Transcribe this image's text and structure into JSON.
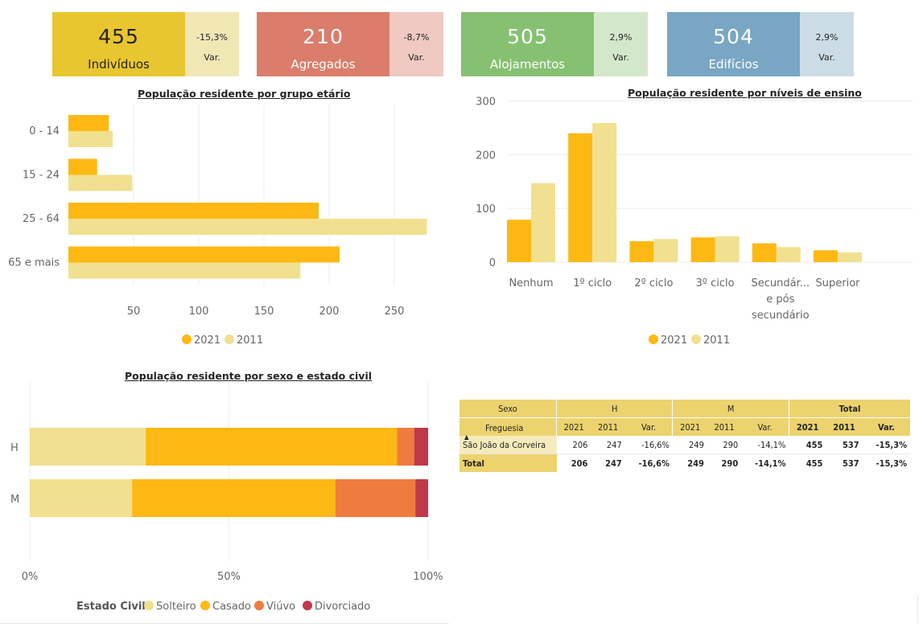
{
  "kpis": [
    {
      "value": "455",
      "label": "Indivíduos",
      "var": "-15,3%",
      "var_label": "Var.",
      "color": "#e8c62f",
      "side_color": "#f1e7b5",
      "text_color": "#252423"
    },
    {
      "value": "210",
      "label": "Agregados",
      "var": "-8,7%",
      "var_label": "Var.",
      "color": "#db7d6b",
      "side_color": "#efc9c2",
      "text_color": "#ffffff"
    },
    {
      "value": "505",
      "label": "Alojamentos",
      "var": "2,9%",
      "var_label": "Var.",
      "color": "#86c172",
      "side_color": "#d3e8cb",
      "text_color": "#ffffff"
    },
    {
      "value": "504",
      "label": "Edifícios",
      "var": "2,9%",
      "var_label": "Var.",
      "color": "#79a6c3",
      "side_color": "#ccdce6",
      "text_color": "#ffffff"
    }
  ],
  "colors": {
    "y2021": "#fdb813",
    "y2011": "#f1e08f",
    "solteiro": "#f1e08f",
    "casado": "#fdb813",
    "viuvo": "#f07b3f",
    "divorciado": "#c0394a"
  },
  "chart_data": [
    {
      "type": "bar",
      "orientation": "horizontal",
      "title": "População residente por grupo etário",
      "categories": [
        "0 - 14",
        "15 - 24",
        "25 - 64",
        "65 e mais"
      ],
      "series": [
        {
          "name": "2021",
          "values": [
            31,
            22,
            192,
            208
          ]
        },
        {
          "name": "2011",
          "values": [
            34,
            49,
            275,
            178
          ]
        }
      ],
      "x_ticks": [
        "50",
        "100",
        "150",
        "200",
        "250"
      ],
      "xlim": [
        0,
        280
      ],
      "legend": "bottom"
    },
    {
      "type": "bar",
      "title": "População residente por níveis de ensino",
      "categories": [
        "Nenhum",
        "1º ciclo",
        "2º ciclo",
        "3º ciclo",
        "Secundár... e pós secundário",
        "Superior"
      ],
      "category_label_lines": [
        [
          "Nenhum"
        ],
        [
          "1º ciclo"
        ],
        [
          "2º ciclo"
        ],
        [
          "3º ciclo"
        ],
        [
          "Secundár...",
          "e pós",
          "secundário"
        ],
        [
          "Superior"
        ]
      ],
      "series": [
        {
          "name": "2021",
          "values": [
            79,
            240,
            39,
            46,
            35,
            22
          ]
        },
        {
          "name": "2011",
          "values": [
            147,
            259,
            43,
            48,
            28,
            18
          ]
        }
      ],
      "y_ticks": [
        "0",
        "100",
        "200",
        "300"
      ],
      "ylim": [
        0,
        300
      ],
      "legend": "bottom"
    },
    {
      "type": "bar",
      "orientation": "horizontal",
      "stacked": "100%",
      "title": "População residente por sexo e estado civil",
      "categories": [
        "H",
        "M"
      ],
      "series": [
        {
          "name": "Solteiro",
          "values": [
            29.1,
            25.7
          ]
        },
        {
          "name": "Casado",
          "values": [
            63.1,
            51.0
          ]
        },
        {
          "name": "Viúvo",
          "values": [
            4.3,
            20.1
          ]
        },
        {
          "name": "Divorciado",
          "values": [
            3.5,
            3.2
          ]
        }
      ],
      "x_ticks": [
        "0%",
        "50%",
        "100%"
      ],
      "legend_title": "Estado Civil",
      "legend": "bottom"
    }
  ],
  "matrix": {
    "header_row1": {
      "sexo": "Sexo",
      "h": "H",
      "m": "M",
      "total": "Total"
    },
    "header_row2": {
      "freguesia": "Freguesia",
      "sort_icon": "▲",
      "cols": [
        "2021",
        "2011",
        "Var.",
        "2021",
        "2011",
        "Var.",
        "2021",
        "2011",
        "Var."
      ]
    },
    "rows": [
      {
        "name": "São João da Corveira",
        "values": [
          "206",
          "247",
          "-16,6%",
          "249",
          "290",
          "-14,1%",
          "455",
          "537",
          "-15,3%"
        ]
      }
    ],
    "total": {
      "name": "Total",
      "values": [
        "206",
        "247",
        "-16,6%",
        "249",
        "290",
        "-14,1%",
        "455",
        "537",
        "-15,3%"
      ]
    }
  }
}
